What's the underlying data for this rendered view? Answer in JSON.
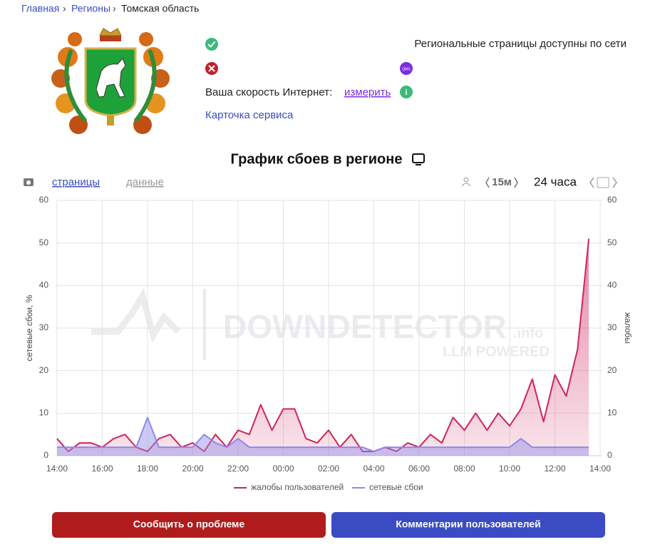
{
  "breadcrumb": [
    "Главная",
    "Регионы",
    "Томская область"
  ],
  "status": {
    "regional_pages": "Региональные страницы доступны по сети",
    "qms_icon": "QMS",
    "speed_label": "Ваша скорость Интернет:",
    "speed_link": "измерить",
    "service_card": "Карточка сервиса"
  },
  "tabs": [
    "страницы",
    "данные"
  ],
  "controls": {
    "interval": "15м",
    "period": "24 часа"
  },
  "watermark": {
    "brand": "DOWNDETECTOR",
    "domain": ".info",
    "tagline": "LLM POWERED"
  },
  "chart_data": {
    "type": "area",
    "title": "График сбоев в регионе",
    "y_label": "сетевые сбои, %",
    "y2_label": "жалобы",
    "x": [
      0,
      0.5,
      1,
      1.5,
      2,
      2.5,
      3,
      3.5,
      4,
      4.5,
      5,
      5.5,
      6,
      6.5,
      7,
      7.5,
      8,
      8.5,
      9,
      9.5,
      10,
      10.5,
      11,
      11.5,
      12,
      12.5,
      13,
      13.5,
      14,
      14.5,
      15,
      15.5,
      16,
      16.5,
      17,
      17.5,
      18,
      18.5,
      19,
      19.5,
      20,
      20.5,
      21,
      21.5,
      22,
      22.5,
      23,
      23.5
    ],
    "xlim": [
      0,
      24
    ],
    "xticks": [
      {
        "value": 0,
        "label": "14:00"
      },
      {
        "value": 2,
        "label": "16:00"
      },
      {
        "value": 4,
        "label": "18:00"
      },
      {
        "value": 6,
        "label": "20:00"
      },
      {
        "value": 8,
        "label": "22:00"
      },
      {
        "value": 10,
        "label": "00:00"
      },
      {
        "value": 12,
        "label": "02:00"
      },
      {
        "value": 14,
        "label": "04:00"
      },
      {
        "value": 16,
        "label": "06:00"
      },
      {
        "value": 18,
        "label": "08:00"
      },
      {
        "value": 20,
        "label": "10:00"
      },
      {
        "value": 22,
        "label": "12:00"
      },
      {
        "value": 24,
        "label": "14:00"
      }
    ],
    "ylim": [
      0,
      60
    ],
    "yticks": [
      0,
      10,
      20,
      30,
      40,
      50,
      60
    ],
    "y2lim": [
      0,
      60
    ],
    "y2ticks": [
      0,
      10,
      20,
      30,
      40,
      50,
      60
    ],
    "grid": true,
    "series": [
      {
        "name": "жалобы пользователей",
        "color": "#d0245a",
        "axis": "y2",
        "values": [
          4,
          1,
          3,
          3,
          2,
          4,
          5,
          2,
          1,
          4,
          5,
          2,
          3,
          1,
          5,
          2,
          6,
          5,
          12,
          6,
          11,
          11,
          4,
          3,
          6,
          2,
          5,
          1,
          1,
          2,
          1,
          3,
          2,
          5,
          3,
          9,
          6,
          10,
          6,
          10,
          7,
          11,
          18,
          8,
          19,
          14,
          25,
          51
        ]
      },
      {
        "name": "сетевые сбои",
        "color": "#8f89e8",
        "values": [
          2,
          2,
          2,
          2,
          2,
          2,
          2,
          2,
          9,
          2,
          2,
          2,
          2,
          5,
          3,
          2,
          4,
          2,
          2,
          2,
          2,
          2,
          2,
          2,
          2,
          2,
          2,
          2,
          1,
          2,
          2,
          2,
          2,
          2,
          2,
          2,
          2,
          2,
          2,
          2,
          2,
          4,
          2,
          2,
          2,
          2,
          2,
          2
        ]
      }
    ],
    "buttons": [
      "Сообщить о проблеме",
      "Комментарии пользователей"
    ]
  }
}
